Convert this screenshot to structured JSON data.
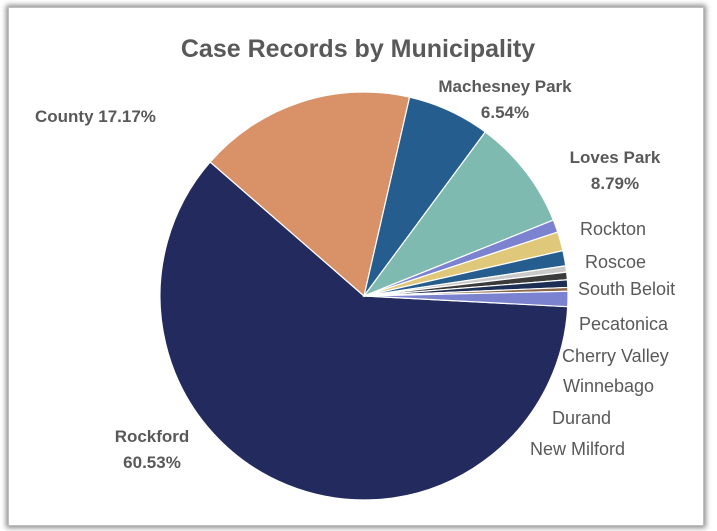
{
  "chart_data": {
    "type": "pie",
    "title": "Case Records by Municipality",
    "slices": [
      {
        "name": "Rockford",
        "value": 60.53,
        "color": "#222a5e",
        "label_name": "Rockford",
        "label_value": "60.53%"
      },
      {
        "name": "County",
        "value": 17.17,
        "color": "#d99168",
        "label_name": "County 17.17%",
        "label_value": ""
      },
      {
        "name": "Machesney Park",
        "value": 6.54,
        "color": "#245d8e",
        "label_name": "Machesney Park",
        "label_value": "6.54%"
      },
      {
        "name": "Loves Park",
        "value": 8.79,
        "color": "#7fbab1",
        "label_name": "Loves Park",
        "label_value": "8.79%"
      },
      {
        "name": "Rockton",
        "value": 1.0,
        "color": "#7b82cf",
        "label_name": "Rockton",
        "label_value": ""
      },
      {
        "name": "Roscoe",
        "value": 1.5,
        "color": "#e0c87a",
        "label_name": "Roscoe",
        "label_value": ""
      },
      {
        "name": "South Beloit",
        "value": 1.2,
        "color": "#245d8e",
        "label_name": "South Beloit",
        "label_value": ""
      },
      {
        "name": "Pecatonica",
        "value": 0.5,
        "color": "#c9c9c9",
        "label_name": "Pecatonica",
        "label_value": ""
      },
      {
        "name": "Cherry Valley",
        "value": 0.6,
        "color": "#3b3b3b",
        "label_name": "Cherry Valley",
        "label_value": ""
      },
      {
        "name": "Winnebago",
        "value": 0.6,
        "color": "#1e2f55",
        "label_name": "Winnebago",
        "label_value": ""
      },
      {
        "name": "Durand",
        "value": 0.3,
        "color": "#8a6848",
        "label_name": "Durand",
        "label_value": ""
      },
      {
        "name": "New Milford",
        "value": 1.2,
        "color": "#7b82cf",
        "label_name": "New Milford",
        "label_value": ""
      }
    ]
  }
}
